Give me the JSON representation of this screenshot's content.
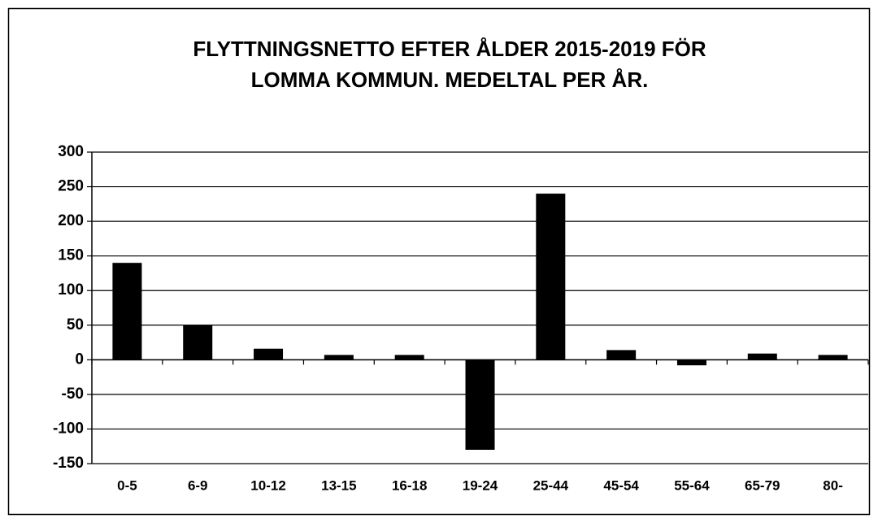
{
  "chart_data": {
    "type": "bar",
    "title": [
      "FLYTTNINGSNETTO EFTER ÅLDER 2015-2019 FÖR",
      "LOMMA KOMMUN. MEDELTAL PER ÅR."
    ],
    "categories": [
      "0-5",
      "6-9",
      "10-12",
      "13-15",
      "16-18",
      "19-24",
      "25-44",
      "45-54",
      "55-64",
      "65-79",
      "80-"
    ],
    "values": [
      140,
      50,
      16,
      7,
      7,
      -130,
      240,
      14,
      -8,
      9,
      7
    ],
    "color": "#000000",
    "ylim": [
      -150,
      300
    ],
    "yticks": [
      -150,
      -100,
      -50,
      0,
      50,
      100,
      150,
      200,
      250,
      300
    ],
    "grid": true
  }
}
